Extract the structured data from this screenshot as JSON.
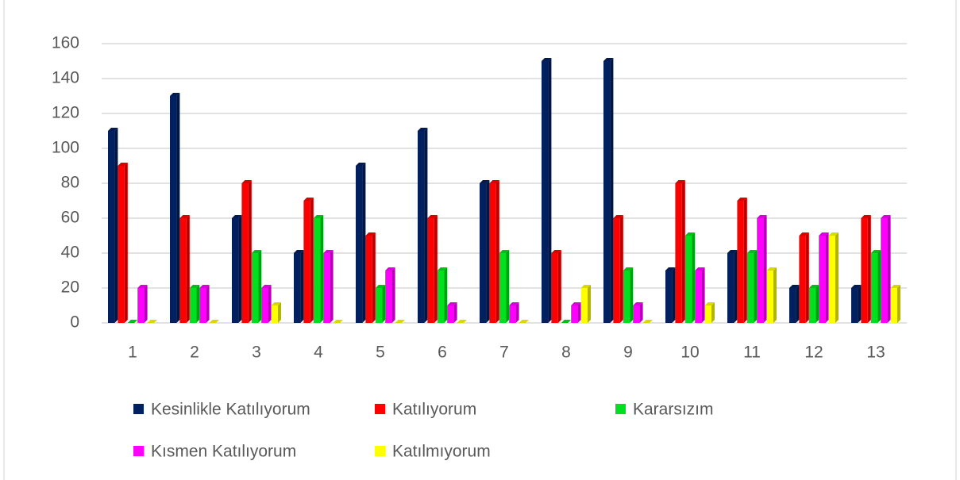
{
  "chart_data": {
    "type": "bar",
    "categories": [
      "1",
      "2",
      "3",
      "4",
      "5",
      "6",
      "7",
      "8",
      "9",
      "10",
      "11",
      "12",
      "13"
    ],
    "series": [
      {
        "name": "Kesinlikle Katılıyorum",
        "color": "#002060",
        "values": [
          110,
          130,
          60,
          40,
          90,
          110,
          80,
          150,
          150,
          30,
          40,
          20,
          20
        ]
      },
      {
        "name": "Katılıyorum",
        "color": "#ff0000",
        "values": [
          90,
          60,
          80,
          70,
          50,
          60,
          80,
          40,
          60,
          80,
          70,
          50,
          60
        ]
      },
      {
        "name": "Kararsızım",
        "color": "#00e020",
        "values": [
          0,
          20,
          40,
          60,
          20,
          30,
          40,
          0,
          30,
          50,
          40,
          20,
          40
        ]
      },
      {
        "name": "Kısmen Katılıyorum",
        "color": "#ff00ff",
        "values": [
          20,
          20,
          20,
          40,
          30,
          10,
          10,
          10,
          10,
          30,
          60,
          50,
          60
        ]
      },
      {
        "name": "Katılmıyorum",
        "color": "#ffff00",
        "values": [
          0,
          0,
          10,
          0,
          0,
          0,
          0,
          20,
          0,
          10,
          30,
          50,
          20
        ]
      }
    ],
    "ylim": [
      0,
      160
    ],
    "yticks": [
      0,
      20,
      40,
      60,
      80,
      100,
      120,
      140,
      160
    ],
    "grid": true,
    "legend": "bottom"
  }
}
